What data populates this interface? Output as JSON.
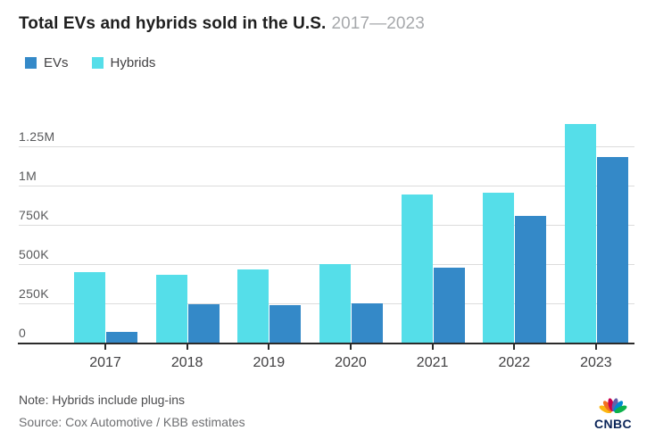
{
  "title": "Total EVs and hybrids sold in the U.S.",
  "subtitle": "2017—2023",
  "legend": [
    {
      "label": "EVs",
      "color": "#3489C8"
    },
    {
      "label": "Hybrids",
      "color": "#55DEE9"
    }
  ],
  "footer": {
    "note": "Note: Hybrids include plug-ins",
    "source": "Source: Cox Automotive / KBB estimates"
  },
  "logo_text": "CNBC",
  "colors": {
    "ev_blue": "#3489C8",
    "hybrid_cyan": "#55DEE9",
    "gridline": "#dcdcdc",
    "axis": "#2b2b2b",
    "title": "#1e1e1e",
    "subtitle": "#a6a8ab"
  },
  "chart_data": {
    "type": "bar",
    "title": "Total EVs and hybrids sold in the U.S.",
    "subtitle": "2017—2023",
    "categories": [
      "2017",
      "2018",
      "2019",
      "2020",
      "2021",
      "2022",
      "2023"
    ],
    "series": [
      {
        "name": "Hybrids",
        "color": "#55DEE9",
        "values": [
          455000,
          440000,
          470000,
          505000,
          950000,
          960000,
          1400000
        ]
      },
      {
        "name": "EVs",
        "color": "#3489C8",
        "values": [
          75000,
          250000,
          245000,
          255000,
          485000,
          810000,
          1185000
        ]
      }
    ],
    "yticks": [
      {
        "label": "0",
        "value": 0
      },
      {
        "label": "250K",
        "value": 250000
      },
      {
        "label": "500K",
        "value": 500000
      },
      {
        "label": "750K",
        "value": 750000
      },
      {
        "label": "1M",
        "value": 1000000
      },
      {
        "label": "1.25M",
        "value": 1250000
      }
    ],
    "ylim": [
      0,
      1450000
    ],
    "xlabel": "",
    "ylabel": "",
    "grid": "horizontal",
    "legend_position": "top-left",
    "note": "Note: Hybrids include plug-ins",
    "source": "Source: Cox Automotive / KBB estimates"
  }
}
